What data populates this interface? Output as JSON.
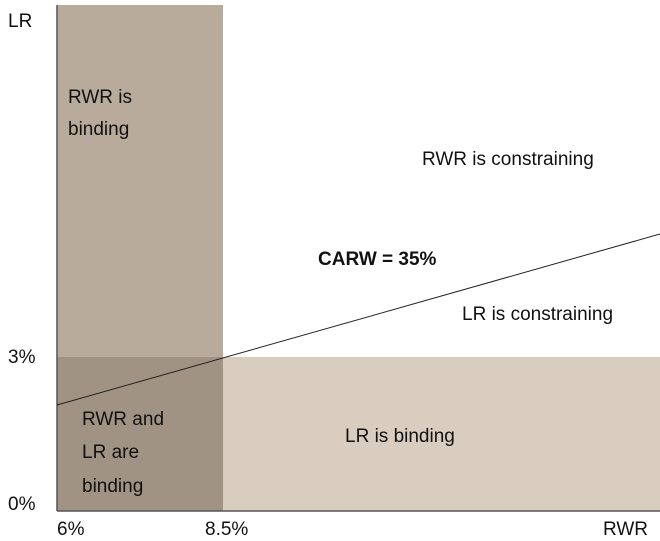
{
  "axes": {
    "y_label": "LR",
    "x_label": "RWR",
    "y_ticks": [
      "3%",
      "0%"
    ],
    "x_ticks": [
      "6%",
      "8.5%"
    ]
  },
  "regions": {
    "rwr_binding": [
      "RWR is",
      "binding"
    ],
    "both_binding": [
      "RWR and",
      "LR are",
      "binding"
    ],
    "lr_binding": "LR is binding",
    "rwr_constraining": "RWR is constraining",
    "lr_constraining": "LR is constraining"
  },
  "line_label": "CARW = 35%"
}
